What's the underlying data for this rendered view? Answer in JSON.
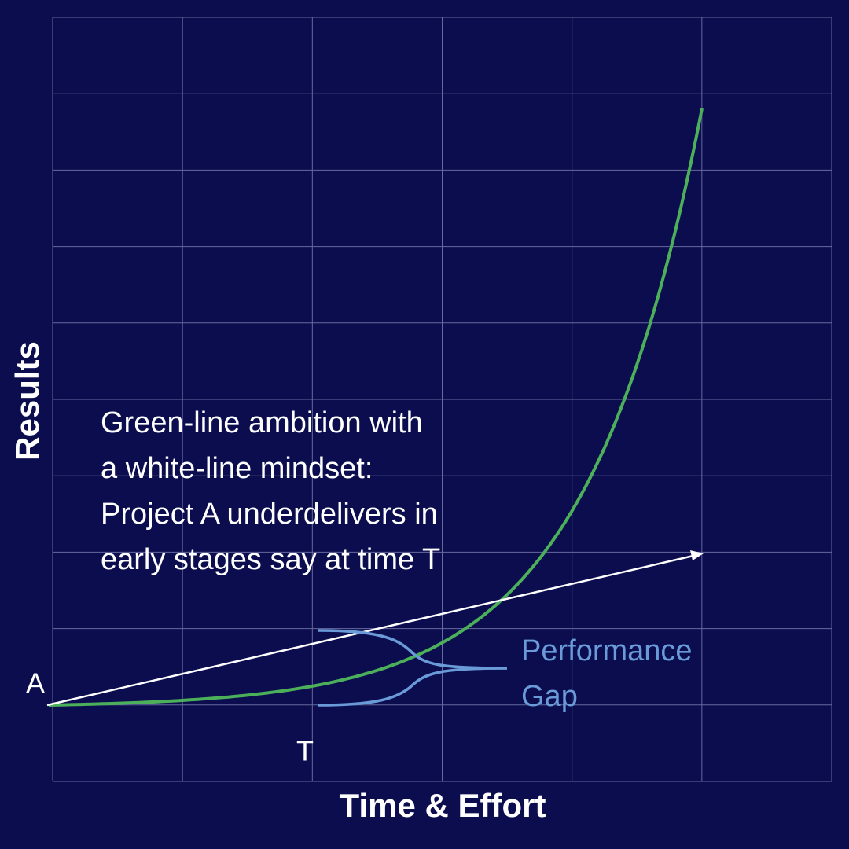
{
  "y_axis_label": "Results",
  "x_axis_label": "Time & Effort",
  "annotation": {
    "lines": [
      "Green-line ambition with",
      "a white-line mindset:",
      "Project A underdelivers in",
      "early stages say at time T"
    ]
  },
  "point_labels": {
    "start": "A",
    "time": "T"
  },
  "gap_label": {
    "lines": [
      "Performance",
      "Gap"
    ]
  }
}
